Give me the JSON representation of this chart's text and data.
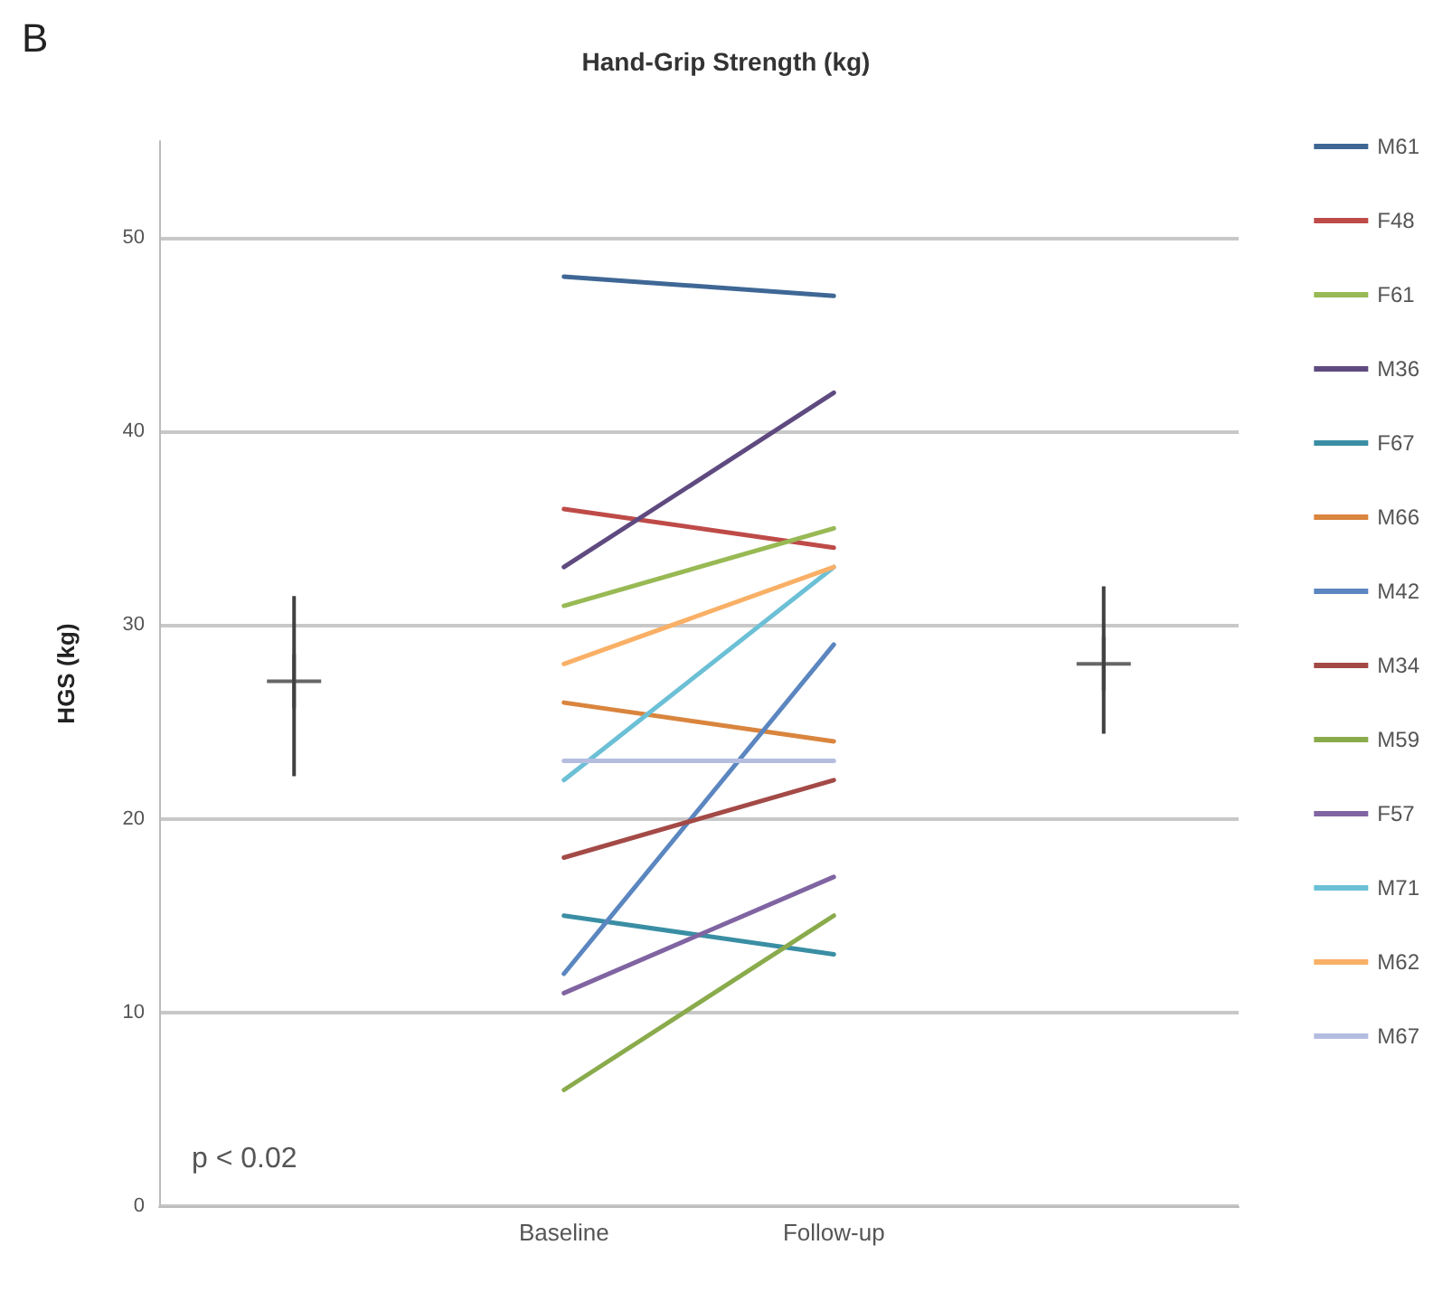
{
  "chart_data": {
    "type": "line",
    "title": "Hand-Grip Strength (kg)",
    "ylabel": "HGS (kg)",
    "annotations": [
      "B",
      "p < 0.02"
    ],
    "categories": [
      null,
      "Baseline",
      "Follow-up",
      null
    ],
    "ylim": [
      0,
      55
    ],
    "yticks": [
      0,
      10,
      20,
      30,
      40,
      50
    ],
    "grid": "y",
    "legend": "right",
    "series": [
      {
        "name": "M61",
        "color": "#3f6795",
        "values": [
          null,
          48,
          47,
          null
        ]
      },
      {
        "name": "F48",
        "color": "#be4b48",
        "values": [
          null,
          36,
          34,
          null
        ]
      },
      {
        "name": "F61",
        "color": "#98b954",
        "values": [
          null,
          31,
          35,
          null
        ]
      },
      {
        "name": "M36",
        "color": "#5f4a80",
        "values": [
          null,
          33,
          42,
          null
        ]
      },
      {
        "name": "F67",
        "color": "#3a8ea4",
        "values": [
          null,
          15,
          13,
          null
        ]
      },
      {
        "name": "M66",
        "color": "#d9853e",
        "values": [
          null,
          26,
          24,
          null
        ]
      },
      {
        "name": "M42",
        "color": "#5b86c0",
        "values": [
          null,
          12,
          29,
          null
        ]
      },
      {
        "name": "M34",
        "color": "#a34a47",
        "values": [
          null,
          18,
          22,
          null
        ]
      },
      {
        "name": "M59",
        "color": "#8aab4c",
        "values": [
          null,
          6,
          15,
          null
        ]
      },
      {
        "name": "F57",
        "color": "#8064a2",
        "values": [
          null,
          11,
          17,
          null
        ]
      },
      {
        "name": "M71",
        "color": "#6cc0d6",
        "values": [
          null,
          22,
          33,
          null
        ]
      },
      {
        "name": "M62",
        "color": "#f9b066",
        "values": [
          null,
          28,
          33,
          null
        ]
      },
      {
        "name": "M67",
        "color": "#b4bde0",
        "values": [
          null,
          23,
          23,
          null
        ]
      },
      {
        "type": "scatter",
        "color": "#404040",
        "marker": "cross",
        "values": [
          27.1,
          null,
          null,
          28
        ],
        "errors": [
          [
            22.2,
            31.5
          ],
          null,
          null,
          [
            24.4,
            32
          ]
        ]
      }
    ]
  }
}
